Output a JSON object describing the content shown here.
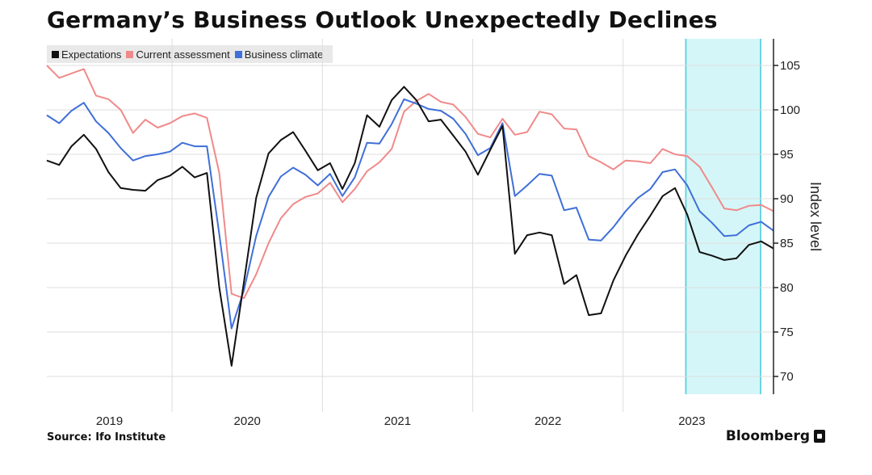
{
  "chart_data": {
    "type": "line",
    "title": "Germany’s Business Outlook Unexpectedly Declines",
    "ylabel": "Index level",
    "xlabel": "",
    "ylim": [
      68,
      108
    ],
    "yticks": [
      70,
      75,
      80,
      85,
      90,
      95,
      100,
      105
    ],
    "year_labels": [
      "2019",
      "2020",
      "2021",
      "2022",
      "2023"
    ],
    "x_start": 2019.0,
    "x_end": 2023.833,
    "year_boundaries": [
      2019.833,
      2020.833,
      2021.833,
      2022.833
    ],
    "highlight": {
      "from": 2023.25,
      "to": 2023.917
    },
    "grid": true,
    "series": [
      {
        "name": "Expectations",
        "color": "#111111",
        "values": [
          94.3,
          93.8,
          95.9,
          97.2,
          95.6,
          93.0,
          91.2,
          91.0,
          90.9,
          92.1,
          92.6,
          93.6,
          92.4,
          92.9,
          80.0,
          71.2,
          80.6,
          90.1,
          95.1,
          96.6,
          97.5,
          95.4,
          93.2,
          94.0,
          91.1,
          94.0,
          99.4,
          98.1,
          101.1,
          102.6,
          101.1,
          98.7,
          98.9,
          97.1,
          95.3,
          92.7,
          95.5,
          98.2,
          83.8,
          85.9,
          86.2,
          85.9,
          80.4,
          81.4,
          76.9,
          77.1,
          80.8,
          83.6,
          86.0,
          88.1,
          90.3,
          91.2,
          88.2,
          84.0,
          83.6,
          83.1,
          83.3,
          84.8,
          85.2,
          84.4
        ]
      },
      {
        "name": "Current assessment",
        "color": "#f08a8a",
        "values": [
          105.0,
          103.6,
          104.1,
          104.6,
          101.6,
          101.2,
          100.0,
          97.4,
          98.9,
          98.0,
          98.5,
          99.3,
          99.6,
          99.1,
          92.9,
          79.3,
          78.8,
          81.5,
          85.0,
          87.8,
          89.4,
          90.2,
          90.6,
          91.8,
          89.6,
          91.1,
          93.1,
          94.1,
          95.6,
          99.8,
          101.0,
          101.8,
          100.9,
          100.6,
          99.2,
          97.3,
          96.9,
          99.0,
          97.2,
          97.5,
          99.8,
          99.5,
          97.9,
          97.8,
          94.8,
          94.1,
          93.3,
          94.3,
          94.2,
          94.0,
          95.6,
          95.0,
          94.8,
          93.6,
          91.3,
          88.9,
          88.7,
          89.2,
          89.3,
          88.6
        ]
      },
      {
        "name": "Business climate",
        "color": "#3f6fd8",
        "values": [
          99.4,
          98.5,
          99.9,
          100.8,
          98.7,
          97.4,
          95.7,
          94.3,
          94.8,
          95.0,
          95.3,
          96.3,
          95.9,
          95.9,
          86.0,
          75.4,
          79.7,
          85.8,
          90.2,
          92.5,
          93.5,
          92.7,
          91.5,
          92.8,
          90.3,
          92.4,
          96.3,
          96.2,
          98.4,
          101.2,
          100.7,
          100.1,
          99.9,
          99.0,
          97.3,
          94.9,
          95.7,
          98.5,
          90.3,
          91.5,
          92.8,
          92.6,
          88.7,
          89.0,
          85.4,
          85.3,
          86.8,
          88.6,
          90.1,
          91.1,
          93.0,
          93.3,
          91.5,
          88.6,
          87.3,
          85.8,
          85.9,
          87.0,
          87.4,
          86.4
        ]
      }
    ]
  },
  "source_text": "Source: Ifo Institute",
  "brand_text": "Bloomberg",
  "colors": {
    "highlight_fill": "#d5f6f8",
    "highlight_edge": "#6bd3df",
    "grid": "#dddddd"
  }
}
